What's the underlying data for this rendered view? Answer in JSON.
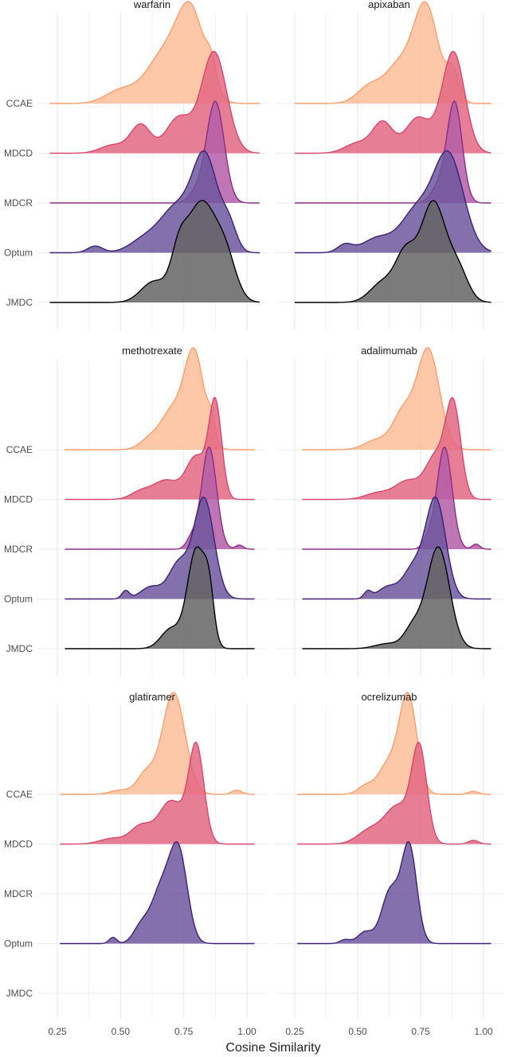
{
  "chart_data": {
    "type": "ridgeline",
    "xlabel": "Cosine Similarity",
    "xlim": [
      0.25,
      1.0
    ],
    "xticks": [
      0.25,
      0.5,
      0.75,
      1.0
    ],
    "xtick_labels": [
      "0.25",
      "0.50",
      "0.75",
      "1.00"
    ],
    "sources": [
      "CCAE",
      "MDCD",
      "MDCR",
      "Optum",
      "JMDC"
    ],
    "colors": {
      "CCAE": "#fdbe99",
      "MDCD": "#e26782",
      "MDCR": "#b35ea8",
      "Optum": "#6f579e",
      "JMDC": "#646464"
    },
    "line_colors": {
      "CCAE": "#fb9e6d",
      "MDCD": "#d9466c",
      "MDCR": "#8c2d87",
      "Optum": "#3f1f74",
      "JMDC": "#000000"
    },
    "panels": [
      {
        "drug": "warfarin",
        "densities": {
          "CCAE": {
            "range": [
              0.22,
              1.05
            ],
            "peaks": [
              [
                0.78,
                0.055,
                1.0
              ],
              [
                0.67,
                0.07,
                0.55
              ],
              [
                0.5,
                0.06,
                0.15
              ],
              [
                0.86,
                0.02,
                0.25
              ]
            ]
          },
          "MDCD": {
            "range": [
              0.22,
              1.05
            ],
            "peaks": [
              [
                0.87,
                0.05,
                1.0
              ],
              [
                0.73,
                0.05,
                0.35
              ],
              [
                0.58,
                0.04,
                0.28
              ],
              [
                0.47,
                0.05,
                0.08
              ]
            ]
          },
          "MDCR": {
            "range": [
              0.22,
              1.05
            ],
            "peaks": [
              [
                0.875,
                0.035,
                1.0
              ],
              [
                0.8,
                0.03,
                0.1
              ]
            ]
          },
          "Optum": {
            "range": [
              0.22,
              1.05
            ],
            "peaks": [
              [
                0.835,
                0.05,
                1.0
              ],
              [
                0.72,
                0.06,
                0.45
              ],
              [
                0.6,
                0.06,
                0.15
              ],
              [
                0.4,
                0.03,
                0.07
              ],
              [
                0.93,
                0.03,
                0.25
              ]
            ]
          },
          "JMDC": {
            "range": [
              0.22,
              1.05
            ],
            "peaks": [
              [
                0.82,
                0.065,
                1.0
              ],
              [
                0.73,
                0.03,
                0.3
              ],
              [
                0.63,
                0.05,
                0.2
              ],
              [
                0.92,
                0.04,
                0.3
              ]
            ]
          }
        }
      },
      {
        "drug": "apixaban",
        "densities": {
          "CCAE": {
            "range": [
              0.25,
              1.03
            ],
            "peaks": [
              [
                0.77,
                0.05,
                1.0
              ],
              [
                0.66,
                0.05,
                0.35
              ],
              [
                0.55,
                0.05,
                0.18
              ],
              [
                0.88,
                0.025,
                0.3
              ]
            ]
          },
          "MDCD": {
            "range": [
              0.25,
              1.03
            ],
            "peaks": [
              [
                0.88,
                0.045,
                1.0
              ],
              [
                0.74,
                0.05,
                0.35
              ],
              [
                0.6,
                0.04,
                0.3
              ],
              [
                0.5,
                0.05,
                0.1
              ]
            ]
          },
          "MDCR": {
            "range": [
              0.25,
              1.03
            ],
            "peaks": [
              [
                0.885,
                0.03,
                1.0
              ],
              [
                0.82,
                0.03,
                0.15
              ]
            ]
          },
          "Optum": {
            "range": [
              0.25,
              1.03
            ],
            "peaks": [
              [
                0.86,
                0.06,
                1.0
              ],
              [
                0.73,
                0.06,
                0.4
              ],
              [
                0.58,
                0.06,
                0.15
              ],
              [
                0.45,
                0.03,
                0.08
              ]
            ]
          },
          "JMDC": {
            "range": [
              0.25,
              1.03
            ],
            "peaks": [
              [
                0.8,
                0.05,
                1.0
              ],
              [
                0.69,
                0.04,
                0.45
              ],
              [
                0.6,
                0.05,
                0.2
              ],
              [
                0.9,
                0.04,
                0.3
              ]
            ]
          }
        }
      },
      {
        "drug": "methotrexate",
        "densities": {
          "CCAE": {
            "range": [
              0.28,
              1.03
            ],
            "peaks": [
              [
                0.79,
                0.04,
                1.0
              ],
              [
                0.7,
                0.04,
                0.35
              ],
              [
                0.62,
                0.04,
                0.12
              ],
              [
                0.86,
                0.015,
                0.2
              ]
            ]
          },
          "MDCD": {
            "range": [
              0.28,
              1.03
            ],
            "peaks": [
              [
                0.875,
                0.025,
                1.0
              ],
              [
                0.8,
                0.04,
                0.45
              ],
              [
                0.68,
                0.05,
                0.2
              ],
              [
                0.58,
                0.04,
                0.08
              ]
            ]
          },
          "MDCR": {
            "range": [
              0.28,
              1.03
            ],
            "peaks": [
              [
                0.85,
                0.03,
                1.0
              ],
              [
                0.78,
                0.02,
                0.1
              ],
              [
                0.97,
                0.015,
                0.04
              ]
            ]
          },
          "Optum": {
            "range": [
              0.28,
              1.03
            ],
            "peaks": [
              [
                0.83,
                0.04,
                1.0
              ],
              [
                0.73,
                0.04,
                0.35
              ],
              [
                0.62,
                0.04,
                0.12
              ],
              [
                0.52,
                0.015,
                0.08
              ]
            ]
          },
          "JMDC": {
            "range": [
              0.28,
              1.03
            ],
            "peaks": [
              [
                0.8,
                0.035,
                1.0
              ],
              [
                0.85,
                0.02,
                0.45
              ],
              [
                0.7,
                0.04,
                0.2
              ]
            ]
          }
        }
      },
      {
        "drug": "adalimumab",
        "densities": {
          "CCAE": {
            "range": [
              0.28,
              1.03
            ],
            "peaks": [
              [
                0.78,
                0.045,
                1.0
              ],
              [
                0.68,
                0.04,
                0.35
              ],
              [
                0.58,
                0.05,
                0.1
              ]
            ]
          },
          "MDCD": {
            "range": [
              0.28,
              1.03
            ],
            "peaks": [
              [
                0.88,
                0.03,
                1.0
              ],
              [
                0.81,
                0.04,
                0.45
              ],
              [
                0.7,
                0.05,
                0.2
              ],
              [
                0.58,
                0.05,
                0.07
              ]
            ]
          },
          "MDCR": {
            "range": [
              0.28,
              1.03
            ],
            "peaks": [
              [
                0.845,
                0.03,
                1.0
              ],
              [
                0.78,
                0.02,
                0.1
              ],
              [
                0.97,
                0.015,
                0.05
              ]
            ]
          },
          "Optum": {
            "range": [
              0.28,
              1.03
            ],
            "peaks": [
              [
                0.81,
                0.04,
                1.0
              ],
              [
                0.72,
                0.04,
                0.3
              ],
              [
                0.62,
                0.04,
                0.12
              ],
              [
                0.54,
                0.015,
                0.07
              ]
            ]
          },
          "JMDC": {
            "range": [
              0.28,
              1.03
            ],
            "peaks": [
              [
                0.82,
                0.045,
                1.0
              ],
              [
                0.72,
                0.035,
                0.2
              ],
              [
                0.62,
                0.05,
                0.05
              ]
            ]
          }
        }
      },
      {
        "drug": "glatiramer",
        "densities": {
          "CCAE": {
            "range": [
              0.26,
              1.03
            ],
            "peaks": [
              [
                0.71,
                0.045,
                1.0
              ],
              [
                0.6,
                0.035,
                0.2
              ],
              [
                0.5,
                0.04,
                0.04
              ],
              [
                0.96,
                0.02,
                0.04
              ]
            ]
          },
          "MDCD": {
            "range": [
              0.26,
              1.03
            ],
            "peaks": [
              [
                0.8,
                0.03,
                1.0
              ],
              [
                0.7,
                0.05,
                0.45
              ],
              [
                0.58,
                0.04,
                0.18
              ],
              [
                0.47,
                0.05,
                0.06
              ]
            ]
          },
          "Optum": {
            "range": [
              0.26,
              1.03
            ],
            "peaks": [
              [
                0.73,
                0.035,
                1.0
              ],
              [
                0.66,
                0.04,
                0.6
              ],
              [
                0.58,
                0.03,
                0.18
              ],
              [
                0.47,
                0.015,
                0.07
              ]
            ]
          }
        }
      },
      {
        "drug": "ocrelizumab",
        "densities": {
          "CCAE": {
            "range": [
              0.26,
              1.03
            ],
            "peaks": [
              [
                0.7,
                0.035,
                1.0
              ],
              [
                0.62,
                0.04,
                0.3
              ],
              [
                0.53,
                0.03,
                0.08
              ],
              [
                0.96,
                0.02,
                0.03
              ]
            ]
          },
          "MDCD": {
            "range": [
              0.26,
              1.03
            ],
            "peaks": [
              [
                0.745,
                0.03,
                1.0
              ],
              [
                0.66,
                0.05,
                0.4
              ],
              [
                0.55,
                0.05,
                0.15
              ],
              [
                0.96,
                0.02,
                0.04
              ]
            ]
          },
          "Optum": {
            "range": [
              0.26,
              1.03
            ],
            "peaks": [
              [
                0.705,
                0.03,
                1.0
              ],
              [
                0.63,
                0.035,
                0.55
              ],
              [
                0.53,
                0.03,
                0.12
              ],
              [
                0.45,
                0.02,
                0.04
              ]
            ]
          }
        }
      }
    ]
  }
}
